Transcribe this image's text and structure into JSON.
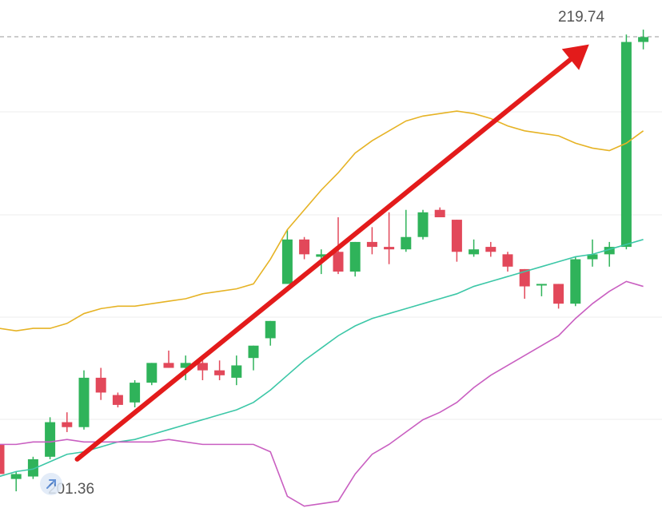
{
  "chart_data": {
    "type": "candlestick",
    "high_label": "219.74",
    "low_label": "201.36",
    "price_range": [
      200.0,
      220.9
    ],
    "grid": true,
    "colors": {
      "up": "#2fb35a",
      "down": "#e2485a",
      "ma_yellow": "#e6b325",
      "ma_teal": "#3cc7a7",
      "ma_purple": "#c95fc1",
      "arrow": "#e31b1b",
      "grid": "#ececec",
      "dashed": "#9a9a9a"
    },
    "candles": [
      {
        "o": 202.9,
        "h": 203.3,
        "l": 201.4,
        "c": 201.7
      },
      {
        "o": 201.5,
        "h": 201.8,
        "l": 201.0,
        "c": 201.7
      },
      {
        "o": 201.6,
        "h": 202.4,
        "l": 201.5,
        "c": 202.3
      },
      {
        "o": 202.4,
        "h": 204.0,
        "l": 202.3,
        "c": 203.8
      },
      {
        "o": 203.8,
        "h": 204.2,
        "l": 203.4,
        "c": 203.6
      },
      {
        "o": 203.6,
        "h": 205.9,
        "l": 203.5,
        "c": 205.6
      },
      {
        "o": 205.6,
        "h": 206.0,
        "l": 204.7,
        "c": 205.0
      },
      {
        "o": 204.9,
        "h": 205.0,
        "l": 204.4,
        "c": 204.5
      },
      {
        "o": 204.6,
        "h": 205.5,
        "l": 204.4,
        "c": 205.4
      },
      {
        "o": 205.4,
        "h": 206.2,
        "l": 205.3,
        "c": 206.2
      },
      {
        "o": 206.2,
        "h": 206.7,
        "l": 206.0,
        "c": 206.0
      },
      {
        "o": 206.0,
        "h": 206.5,
        "l": 205.5,
        "c": 206.2
      },
      {
        "o": 206.2,
        "h": 206.3,
        "l": 205.5,
        "c": 205.9
      },
      {
        "o": 205.9,
        "h": 206.3,
        "l": 205.5,
        "c": 205.7
      },
      {
        "o": 205.6,
        "h": 206.5,
        "l": 205.3,
        "c": 206.1
      },
      {
        "o": 206.4,
        "h": 206.9,
        "l": 205.9,
        "c": 206.9
      },
      {
        "o": 207.2,
        "h": 207.9,
        "l": 206.9,
        "c": 207.9
      },
      {
        "o": 209.4,
        "h": 211.6,
        "l": 209.4,
        "c": 211.2
      },
      {
        "o": 211.2,
        "h": 211.3,
        "l": 210.4,
        "c": 210.6
      },
      {
        "o": 210.5,
        "h": 210.8,
        "l": 209.8,
        "c": 210.6
      },
      {
        "o": 210.7,
        "h": 212.1,
        "l": 209.8,
        "c": 209.9
      },
      {
        "o": 209.9,
        "h": 211.1,
        "l": 209.7,
        "c": 211.1
      },
      {
        "o": 211.1,
        "h": 211.7,
        "l": 210.6,
        "c": 210.9
      },
      {
        "o": 210.9,
        "h": 212.3,
        "l": 210.2,
        "c": 210.8
      },
      {
        "o": 210.8,
        "h": 212.4,
        "l": 210.7,
        "c": 211.3
      },
      {
        "o": 211.3,
        "h": 212.4,
        "l": 211.2,
        "c": 212.3
      },
      {
        "o": 212.4,
        "h": 212.5,
        "l": 212.1,
        "c": 212.1
      },
      {
        "o": 212.0,
        "h": 212.0,
        "l": 210.3,
        "c": 210.7
      },
      {
        "o": 210.6,
        "h": 211.2,
        "l": 210.5,
        "c": 210.8
      },
      {
        "o": 210.9,
        "h": 211.1,
        "l": 210.5,
        "c": 210.7
      },
      {
        "o": 210.6,
        "h": 210.7,
        "l": 209.9,
        "c": 210.1
      },
      {
        "o": 210.0,
        "h": 210.0,
        "l": 208.8,
        "c": 209.3
      },
      {
        "o": 209.4,
        "h": 209.4,
        "l": 208.9,
        "c": 209.4
      },
      {
        "o": 209.4,
        "h": 209.4,
        "l": 208.4,
        "c": 208.6
      },
      {
        "o": 208.6,
        "h": 210.5,
        "l": 208.5,
        "c": 210.4
      },
      {
        "o": 210.4,
        "h": 211.2,
        "l": 210.1,
        "c": 210.6
      },
      {
        "o": 210.6,
        "h": 211.1,
        "l": 210.1,
        "c": 210.9
      },
      {
        "o": 210.9,
        "h": 219.5,
        "l": 210.8,
        "c": 219.2
      },
      {
        "o": 219.2,
        "h": 219.7,
        "l": 218.9,
        "c": 219.4
      }
    ],
    "ma_yellow": [
      207.6,
      207.5,
      207.6,
      207.6,
      207.8,
      208.2,
      208.4,
      208.5,
      208.5,
      208.6,
      208.7,
      208.8,
      209.0,
      209.1,
      209.2,
      209.4,
      210.4,
      211.6,
      212.4,
      213.2,
      213.9,
      214.7,
      215.2,
      215.6,
      216.0,
      216.2,
      216.3,
      216.4,
      216.3,
      216.1,
      215.8,
      215.6,
      215.5,
      215.4,
      215.1,
      214.9,
      214.8,
      215.1,
      215.6
    ],
    "ma_teal": [
      201.6,
      201.8,
      201.9,
      202.2,
      202.5,
      202.6,
      202.8,
      203.0,
      203.1,
      203.3,
      203.5,
      203.7,
      203.9,
      204.1,
      204.3,
      204.6,
      205.1,
      205.7,
      206.3,
      206.8,
      207.3,
      207.7,
      208.0,
      208.2,
      208.4,
      208.6,
      208.8,
      209.0,
      209.3,
      209.5,
      209.7,
      209.9,
      210.1,
      210.3,
      210.5,
      210.6,
      210.8,
      211.0,
      211.2
    ],
    "ma_purple": [
      202.9,
      202.9,
      203.0,
      203.0,
      203.1,
      203.0,
      203.0,
      203.0,
      203.0,
      203.0,
      203.1,
      203.0,
      202.9,
      202.9,
      202.9,
      202.9,
      202.6,
      200.8,
      200.4,
      200.5,
      200.6,
      201.7,
      202.5,
      202.9,
      203.4,
      203.9,
      204.2,
      204.6,
      205.2,
      205.7,
      206.1,
      206.5,
      206.9,
      207.3,
      208.0,
      208.6,
      209.1,
      209.5,
      209.3
    ]
  }
}
